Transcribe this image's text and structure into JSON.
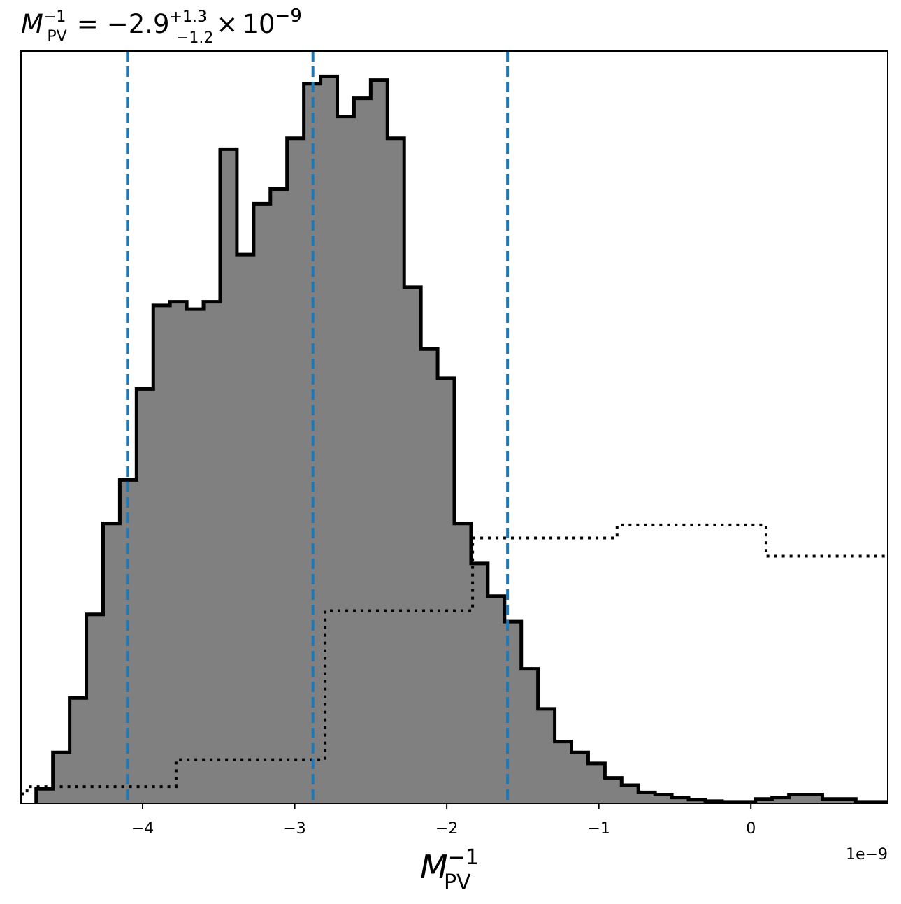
{
  "chart_data": {
    "type": "histogram",
    "title": {
      "main": "M",
      "main_sub": "PV",
      "main_sup": "−1",
      "equals": "=",
      "value": "−2.9",
      "plus_err": "+1.3",
      "minus_err": "−1.2",
      "times": "×",
      "exp_base": "10",
      "exp_power": "−9"
    },
    "xlabel": {
      "main": "M",
      "sub": "PV",
      "sup": "−1"
    },
    "offset_text": "1e−9",
    "x_scale_factor": 1e-09,
    "xlim": [
      -4.8,
      0.9
    ],
    "ylim": [
      0,
      1.035
    ],
    "xticks": [
      {
        "value": -4,
        "label": "−4"
      },
      {
        "value": -3,
        "label": "−3"
      },
      {
        "value": -2,
        "label": "−2"
      },
      {
        "value": -1,
        "label": "−1"
      },
      {
        "value": 0,
        "label": "0"
      }
    ],
    "yticks_visible": false,
    "posterior": {
      "style": "filled-step",
      "fill_color": "#808080",
      "edge_color": "#000000",
      "bin_edges": [
        -4.7,
        -4.59,
        -4.48,
        -4.37,
        -4.26,
        -4.15,
        -4.04,
        -3.93,
        -3.82,
        -3.71,
        -3.6,
        -3.49,
        -3.38,
        -3.27,
        -3.16,
        -3.05,
        -2.94,
        -2.83,
        -2.72,
        -2.61,
        -2.5,
        -2.39,
        -2.28,
        -2.17,
        -2.06,
        -1.95,
        -1.84,
        -1.73,
        -1.62,
        -1.51,
        -1.4,
        -1.29,
        -1.18,
        -1.07,
        -0.96,
        -0.85,
        -0.74,
        -0.63,
        -0.52,
        -0.41,
        -0.3,
        -0.19,
        -0.08,
        0.03,
        0.14,
        0.25,
        0.36,
        0.47,
        0.58,
        0.69,
        0.8,
        0.9
      ],
      "counts": [
        0.02,
        0.07,
        0.145,
        0.26,
        0.385,
        0.445,
        0.57,
        0.685,
        0.69,
        0.68,
        0.69,
        0.9,
        0.755,
        0.825,
        0.845,
        0.915,
        0.99,
        1.0,
        0.945,
        0.97,
        0.995,
        0.915,
        0.71,
        0.625,
        0.585,
        0.385,
        0.33,
        0.285,
        0.25,
        0.185,
        0.13,
        0.085,
        0.07,
        0.055,
        0.035,
        0.025,
        0.015,
        0.012,
        0.008,
        0.005,
        0.003,
        0.002,
        0.002,
        0.006,
        0.008,
        0.012,
        0.012,
        0.006,
        0.006,
        0.002,
        0.002
      ]
    },
    "prior": {
      "style": "dotted-step",
      "line_color": "#000000",
      "bin_edges": [
        -4.8,
        -4.76,
        -4.72,
        -3.78,
        -2.8,
        -1.83,
        -0.88,
        0.1,
        0.9
      ],
      "counts": [
        0.013,
        0.023,
        0.023,
        0.06,
        0.265,
        0.365,
        0.383,
        0.34
      ]
    },
    "quantile_lines": {
      "style": "dashed",
      "color": "#1f77b4",
      "values": [
        -4.1,
        -2.88,
        -1.6
      ]
    }
  }
}
